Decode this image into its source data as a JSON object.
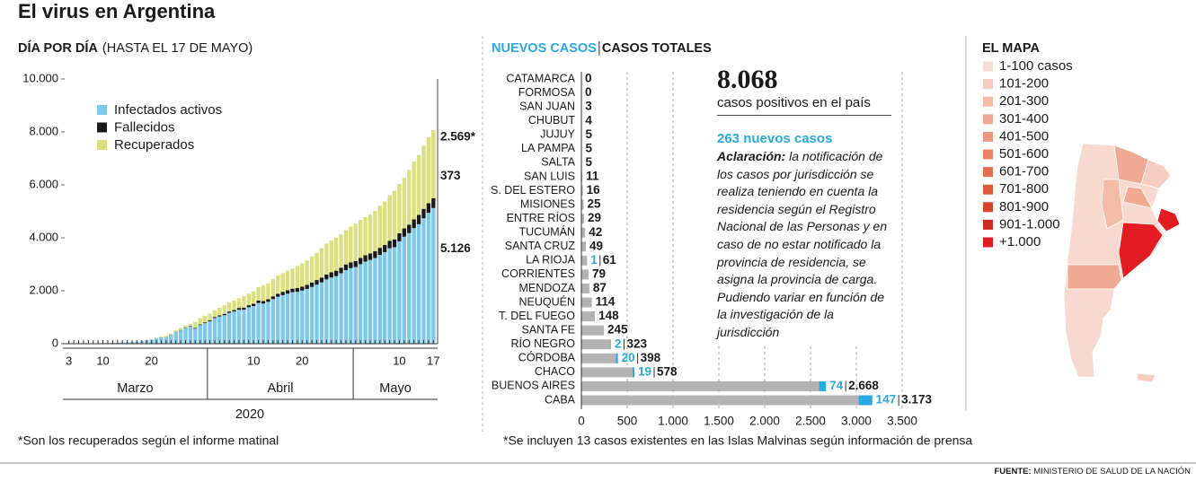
{
  "title": "El virus en Argentina",
  "chart_data": [
    {
      "type": "bar",
      "stacked": true,
      "title": "DÍA POR DÍA",
      "subtitle": "(HASTA EL 17 DE MAYO)",
      "xlabel": "2020",
      "months": [
        "Marzo",
        "Abril",
        "Mayo"
      ],
      "categories": [
        "3",
        null,
        null,
        null,
        null,
        null,
        null,
        "10",
        null,
        null,
        null,
        null,
        null,
        null,
        null,
        null,
        null,
        "20",
        null,
        null,
        null,
        null,
        null,
        null,
        null,
        null,
        null,
        null,
        null,
        null,
        null,
        null,
        null,
        null,
        null,
        null,
        null,
        null,
        "10",
        null,
        null,
        null,
        null,
        null,
        null,
        null,
        null,
        null,
        "20",
        null,
        null,
        null,
        null,
        null,
        null,
        null,
        null,
        null,
        null,
        null,
        null,
        null,
        null,
        null,
        null,
        null,
        null,
        null,
        "10",
        null,
        null,
        null,
        null,
        null,
        null,
        "17"
      ],
      "ylim": [
        0,
        10000
      ],
      "yticks": [
        0,
        {
          "value": 2000,
          "label": "2.000"
        },
        {
          "value": 4000,
          "label": "4.000"
        },
        {
          "value": 6000,
          "label": "6.000"
        },
        {
          "value": 8000,
          "label": "8.000"
        },
        {
          "value": 10000,
          "label": "10.000"
        }
      ],
      "grid": false,
      "legend": "upper left",
      "series": [
        {
          "name": "Infectados activos",
          "color": "#7ec8ea",
          "values": [
            1,
            1,
            2,
            8,
            8,
            11,
            16,
            18,
            20,
            30,
            33,
            44,
            55,
            64,
            77,
            91,
            122,
            152,
            194,
            235,
            245,
            329,
            442,
            505,
            601,
            654,
            569,
            702,
            779,
            849,
            970,
            1030,
            1078,
            1168,
            1215,
            1287,
            1286,
            1375,
            1424,
            1537,
            1517,
            1583,
            1686,
            1774,
            1834,
            1891,
            1946,
            1961,
            2007,
            2070,
            2147,
            2229,
            2318,
            2429,
            2503,
            2551,
            2663,
            2780,
            2855,
            2898,
            3004,
            3102,
            3165,
            3236,
            3353,
            3458,
            3607,
            3646,
            3867,
            4042,
            4178,
            4366,
            4515,
            4738,
            4945,
            5126
          ],
          "value_labels": [
            null,
            null,
            null,
            null,
            null,
            null,
            null,
            null,
            null,
            null,
            null,
            null,
            null,
            null,
            null,
            null,
            null,
            null,
            null,
            null,
            null,
            null,
            null,
            null,
            null,
            null,
            null,
            null,
            null,
            null,
            null,
            null,
            null,
            null,
            null,
            null,
            null,
            null,
            null,
            null,
            null,
            null,
            null,
            null,
            null,
            null,
            null,
            null,
            null,
            null,
            null,
            null,
            null,
            null,
            null,
            null,
            null,
            null,
            null,
            null,
            null,
            null,
            null,
            null,
            null,
            null,
            null,
            null,
            null,
            null,
            null,
            null,
            null,
            null,
            null,
            "5.126"
          ]
        },
        {
          "name": "Fallecidos",
          "color": "#1a1a1a",
          "values": [
            0,
            0,
            0,
            0,
            1,
            1,
            1,
            1,
            1,
            1,
            1,
            1,
            1,
            1,
            2,
            3,
            3,
            3,
            4,
            4,
            4,
            6,
            8,
            12,
            17,
            19,
            23,
            24,
            27,
            36,
            39,
            44,
            48,
            48,
            55,
            63,
            69,
            79,
            83,
            90,
            95,
            98,
            103,
            112,
            126,
            130,
            133,
            141,
            151,
            155,
            165,
            176,
            182,
            189,
            197,
            207,
            208,
            214,
            219,
            225,
            235,
            239,
            246,
            260,
            269,
            276,
            283,
            293,
            305,
            312,
            319,
            329,
            353,
            356,
            363,
            373
          ],
          "value_labels": [
            null,
            null,
            null,
            null,
            null,
            null,
            null,
            null,
            null,
            null,
            null,
            null,
            null,
            null,
            null,
            null,
            null,
            null,
            null,
            null,
            null,
            null,
            null,
            null,
            null,
            null,
            null,
            null,
            null,
            null,
            null,
            null,
            null,
            null,
            null,
            null,
            null,
            null,
            null,
            null,
            null,
            null,
            null,
            null,
            null,
            null,
            null,
            null,
            null,
            null,
            null,
            null,
            null,
            null,
            null,
            null,
            null,
            null,
            null,
            null,
            null,
            null,
            null,
            null,
            null,
            null,
            null,
            null,
            null,
            null,
            null,
            null,
            null,
            null,
            null,
            "373"
          ]
        },
        {
          "name": "Recuperados",
          "color": "#d9e07c",
          "values": [
            0,
            0,
            0,
            0,
            0,
            0,
            0,
            0,
            0,
            0,
            0,
            0,
            0,
            0,
            0,
            3,
            3,
            3,
            27,
            27,
            52,
            52,
            52,
            72,
            72,
            72,
            228,
            240,
            248,
            248,
            256,
            279,
            325,
            338,
            358,
            365,
            440,
            440,
            468,
            515,
            596,
            596,
            654,
            685,
            709,
            737,
            760,
            839,
            873,
            919,
            976,
            1030,
            1107,
            1162,
            1192,
            1245,
            1256,
            1291,
            1354,
            1409,
            1442,
            1442,
            1476,
            1524,
            1586,
            1637,
            1721,
            1837,
            1862,
            1911,
            2066,
            2184,
            2266,
            2385,
            2497,
            2569
          ],
          "value_labels": [
            null,
            null,
            null,
            null,
            null,
            null,
            null,
            null,
            null,
            null,
            null,
            null,
            null,
            null,
            null,
            null,
            null,
            null,
            null,
            null,
            null,
            null,
            null,
            null,
            null,
            null,
            null,
            null,
            null,
            null,
            null,
            null,
            null,
            null,
            null,
            null,
            null,
            null,
            null,
            null,
            null,
            null,
            null,
            null,
            null,
            null,
            null,
            null,
            null,
            null,
            null,
            null,
            null,
            null,
            null,
            null,
            null,
            null,
            null,
            null,
            null,
            null,
            null,
            null,
            null,
            null,
            null,
            null,
            null,
            null,
            null,
            null,
            null,
            null,
            null,
            "2.569*"
          ]
        }
      ],
      "footnote": "*Son los recuperados según el informe matinal"
    },
    {
      "type": "bar",
      "orientation": "horizontal",
      "categories": [
        "CATAMARCA",
        "FORMOSA",
        "SAN JUAN",
        "CHUBUT",
        "JUJUY",
        "LA PAMPA",
        "SALTA",
        "SAN LUIS",
        "S. DEL ESTERO",
        "MISIONES",
        "ENTRE RÍOS",
        "TUCUMÁN",
        "SANTA CRUZ",
        "LA RIOJA",
        "CORRIENTES",
        "MENDOZA",
        "NEUQUÉN",
        "T. DEL FUEGO",
        "SANTA FE",
        "RÍO NEGRO",
        "CÓRDOBA",
        "CHACO",
        "BUENOS AIRES",
        "CABA"
      ],
      "xlim": [
        0,
        3500
      ],
      "xticks": [
        0,
        500,
        {
          "value": 1000,
          "label": "1.000"
        },
        {
          "value": 1500,
          "label": "1.500"
        },
        {
          "value": 2000,
          "label": "2.000"
        },
        {
          "value": 2500,
          "label": "2.500"
        },
        {
          "value": 3000,
          "label": "3.000"
        },
        {
          "value": 3500,
          "label": "3.500"
        }
      ],
      "grid": true,
      "series": [
        {
          "name": "NUEVOS CASOS",
          "color": "#29a9e0",
          "values": [
            null,
            null,
            null,
            null,
            null,
            null,
            null,
            null,
            null,
            null,
            null,
            null,
            null,
            1,
            null,
            null,
            null,
            null,
            null,
            2,
            20,
            19,
            74,
            147
          ]
        },
        {
          "name": "CASOS TOTALES",
          "color": "#b3b3b3",
          "values": [
            0,
            0,
            3,
            4,
            5,
            5,
            5,
            11,
            16,
            25,
            29,
            42,
            49,
            61,
            79,
            87,
            114,
            148,
            245,
            323,
            398,
            578,
            2668,
            3173
          ],
          "value_labels": [
            null,
            null,
            null,
            null,
            null,
            null,
            null,
            null,
            null,
            null,
            null,
            null,
            null,
            null,
            null,
            null,
            null,
            null,
            null,
            null,
            null,
            null,
            "2.668",
            "3.173"
          ]
        }
      ],
      "footnote": "*Se incluyen 13 casos existentes en las Islas Malvinas según información de prensa"
    }
  ],
  "summary": {
    "total": "8.068",
    "total_text": "casos positivos en el país",
    "new_cases": "263 nuevos casos",
    "note_lead": "Aclaración:",
    "note": "la notificación de los casos por jurisdicción se realiza teniendo en cuenta la residencia según el Registro Nacional de las Personas y en caso de no estar notificado la provincia de residencia, se asigna la provincia de carga. Pudiendo variar en función de la investigación de la jurisdicción"
  },
  "map": {
    "title": "EL MAPA",
    "legend": [
      {
        "label": "1-100 casos",
        "color": "#f9dcd3"
      },
      {
        "label": "101-200",
        "color": "#f6cdbf"
      },
      {
        "label": "201-300",
        "color": "#f3bca9"
      },
      {
        "label": "301-400",
        "color": "#f0aa93"
      },
      {
        "label": "401-500",
        "color": "#ec977c"
      },
      {
        "label": "501-600",
        "color": "#e88466"
      },
      {
        "label": "601-700",
        "color": "#e37151"
      },
      {
        "label": "701-800",
        "color": "#dd5b3d"
      },
      {
        "label": "801-900",
        "color": "#d7442c"
      },
      {
        "label": "901-1.000",
        "color": "#cf2b1e"
      },
      {
        "label": "+1.000",
        "color": "#e31b23"
      }
    ]
  },
  "source": {
    "lead": "FUENTE:",
    "text": "MINISTERIO DE SALUD DE LA NACIÓN"
  }
}
